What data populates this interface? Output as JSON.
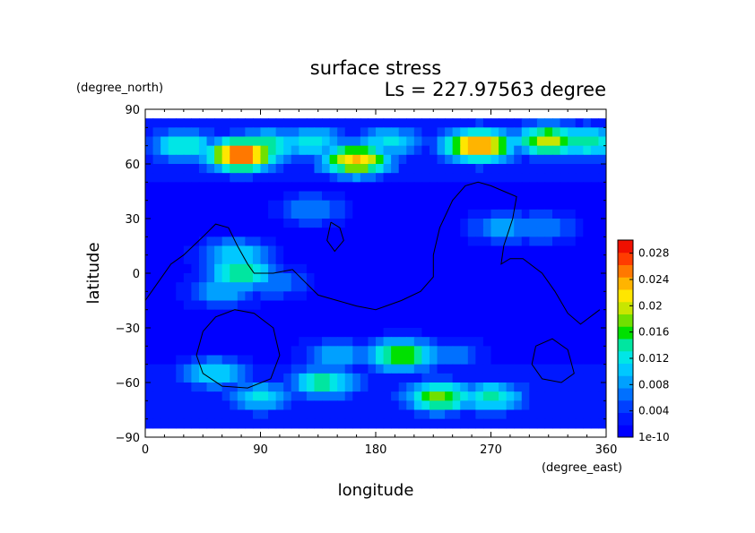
{
  "chart_data": {
    "type": "heatmap",
    "title": "surface stress",
    "subtitle": "Ls = 227.97563 degree",
    "xlabel": "longitude",
    "ylabel": "latitude",
    "x_units": "(degree_east)",
    "y_units": "(degree_north)",
    "xlim": [
      0,
      360
    ],
    "ylim": [
      -90,
      90
    ],
    "x_ticks": [
      0,
      90,
      180,
      270,
      360
    ],
    "y_ticks": [
      -90,
      -60,
      -30,
      0,
      30,
      60,
      90
    ],
    "colorbar": {
      "ticks": [
        0.028,
        0.024,
        0.02,
        0.016,
        0.012,
        0.008,
        0.004
      ],
      "tick_labels": [
        "0.028",
        "0.024",
        "0.02",
        "0.016",
        "0.012",
        "0.008",
        "0.004"
      ],
      "min_label": "1e-10",
      "range": [
        0,
        0.03
      ],
      "colors": [
        "#0000ff",
        "#0018ff",
        "#0040ff",
        "#0070ff",
        "#00a0ff",
        "#00c8ff",
        "#00e6e6",
        "#00e6a0",
        "#00e000",
        "#70e000",
        "#c8e600",
        "#ffe600",
        "#ffb400",
        "#ff7800",
        "#ff3c00",
        "#f01000"
      ]
    },
    "features": [
      {
        "lon": 75,
        "lat": 65,
        "value": 0.028
      },
      {
        "lon": 95,
        "lat": 70,
        "value": 0.016
      },
      {
        "lon": 30,
        "lat": 70,
        "value": 0.014
      },
      {
        "lon": 130,
        "lat": 72,
        "value": 0.013
      },
      {
        "lon": 165,
        "lat": 62,
        "value": 0.023
      },
      {
        "lon": 190,
        "lat": 72,
        "value": 0.012
      },
      {
        "lon": 260,
        "lat": 70,
        "value": 0.026
      },
      {
        "lon": 315,
        "lat": 73,
        "value": 0.02
      },
      {
        "lon": 345,
        "lat": 72,
        "value": 0.015
      },
      {
        "lon": 70,
        "lat": 10,
        "value": 0.012
      },
      {
        "lon": 60,
        "lat": -10,
        "value": 0.01
      },
      {
        "lon": 75,
        "lat": 0,
        "value": 0.016
      },
      {
        "lon": 100,
        "lat": -5,
        "value": 0.008
      },
      {
        "lon": 130,
        "lat": 35,
        "value": 0.008
      },
      {
        "lon": 200,
        "lat": -45,
        "value": 0.018
      },
      {
        "lon": 150,
        "lat": -45,
        "value": 0.01
      },
      {
        "lon": 55,
        "lat": -55,
        "value": 0.012
      },
      {
        "lon": 140,
        "lat": -60,
        "value": 0.015
      },
      {
        "lon": 90,
        "lat": -68,
        "value": 0.012
      },
      {
        "lon": 230,
        "lat": -68,
        "value": 0.018
      },
      {
        "lon": 270,
        "lat": -68,
        "value": 0.014
      },
      {
        "lon": 280,
        "lat": 25,
        "value": 0.009
      },
      {
        "lon": 310,
        "lat": 25,
        "value": 0.008
      },
      {
        "lon": 240,
        "lat": -45,
        "value": 0.007
      }
    ],
    "contours": [
      [
        [
          0,
          -15
        ],
        [
          10,
          -5
        ],
        [
          20,
          5
        ],
        [
          30,
          10
        ],
        [
          45,
          20
        ],
        [
          55,
          27
        ],
        [
          65,
          25
        ],
        [
          72,
          15
        ],
        [
          80,
          5
        ],
        [
          85,
          0
        ],
        [
          100,
          0
        ],
        [
          115,
          2
        ],
        [
          125,
          -5
        ],
        [
          135,
          -12
        ],
        [
          150,
          -15
        ],
        [
          165,
          -18
        ],
        [
          180,
          -20
        ],
        [
          200,
          -15
        ],
        [
          215,
          -10
        ],
        [
          225,
          -2
        ],
        [
          225,
          10
        ],
        [
          230,
          25
        ],
        [
          240,
          40
        ],
        [
          250,
          48
        ],
        [
          260,
          50
        ],
        [
          270,
          48
        ],
        [
          280,
          45
        ],
        [
          290,
          42
        ],
        [
          287,
          30
        ],
        [
          280,
          15
        ],
        [
          278,
          5
        ],
        [
          285,
          8
        ],
        [
          295,
          8
        ],
        [
          310,
          0
        ],
        [
          320,
          -10
        ],
        [
          330,
          -22
        ],
        [
          340,
          -28
        ],
        [
          355,
          -20
        ]
      ],
      [
        [
          45,
          -32
        ],
        [
          55,
          -24
        ],
        [
          70,
          -20
        ],
        [
          85,
          -22
        ],
        [
          100,
          -30
        ],
        [
          105,
          -45
        ],
        [
          98,
          -58
        ],
        [
          80,
          -63
        ],
        [
          60,
          -62
        ],
        [
          45,
          -55
        ],
        [
          40,
          -45
        ],
        [
          45,
          -32
        ]
      ],
      [
        [
          145,
          28
        ],
        [
          152,
          25
        ],
        [
          155,
          18
        ],
        [
          148,
          12
        ],
        [
          142,
          18
        ],
        [
          145,
          28
        ]
      ],
      [
        [
          305,
          -40
        ],
        [
          318,
          -36
        ],
        [
          330,
          -42
        ],
        [
          335,
          -55
        ],
        [
          325,
          -60
        ],
        [
          310,
          -58
        ],
        [
          302,
          -50
        ],
        [
          305,
          -40
        ]
      ]
    ]
  }
}
